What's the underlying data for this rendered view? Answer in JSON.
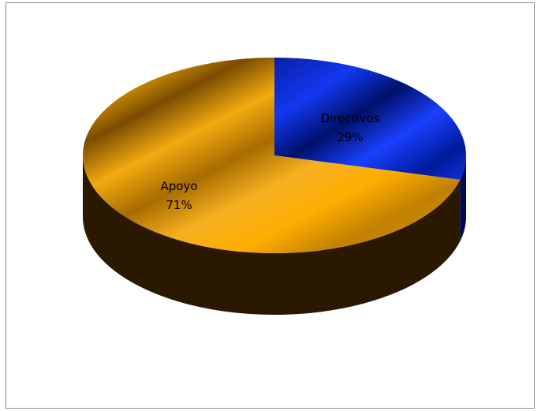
{
  "chart_data": {
    "type": "pie",
    "style": "3d",
    "title": "",
    "slices": [
      {
        "name": "Directivos",
        "label": "Directivos",
        "percent_label": "29%",
        "value": 0.29,
        "color": "#1030e0"
      },
      {
        "name": "Apoyo",
        "label": "Apoyo",
        "percent_label": "71%",
        "value": 0.71,
        "color": "#f0a000"
      }
    ],
    "legend": "none"
  }
}
